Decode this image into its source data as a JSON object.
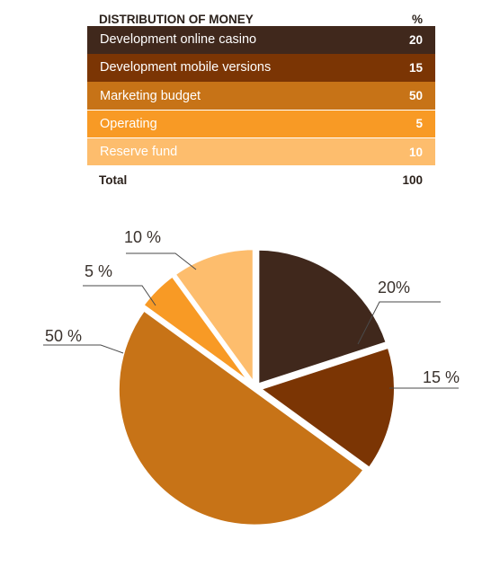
{
  "table": {
    "header_label": "DISTRIBUTION OF MONEY",
    "header_unit": "%",
    "rows": [
      {
        "label": "Development online casino",
        "value": "20",
        "color": "#40281c"
      },
      {
        "label": "Development mobile versions",
        "value": "15",
        "color": "#7b3504"
      },
      {
        "label": "Marketing budget",
        "value": "50",
        "color": "#c77317"
      },
      {
        "label": "Operating",
        "value": "5",
        "color": "#f89a25"
      },
      {
        "label": "Reserve fund",
        "value": "10",
        "color": "#fdbd6d"
      }
    ],
    "total_label": "Total",
    "total_value": "100"
  },
  "chart_data": {
    "type": "pie",
    "categories": [
      "Development online casino",
      "Development mobile versions",
      "Marketing budget",
      "Operating",
      "Reserve fund"
    ],
    "values": [
      20,
      15,
      50,
      5,
      10
    ],
    "colors": [
      "#40281c",
      "#7b3504",
      "#c77317",
      "#f89a25",
      "#fdbd6d"
    ],
    "data_labels": [
      "20%",
      "15 %",
      "50 %",
      "5 %",
      "10 %"
    ]
  }
}
